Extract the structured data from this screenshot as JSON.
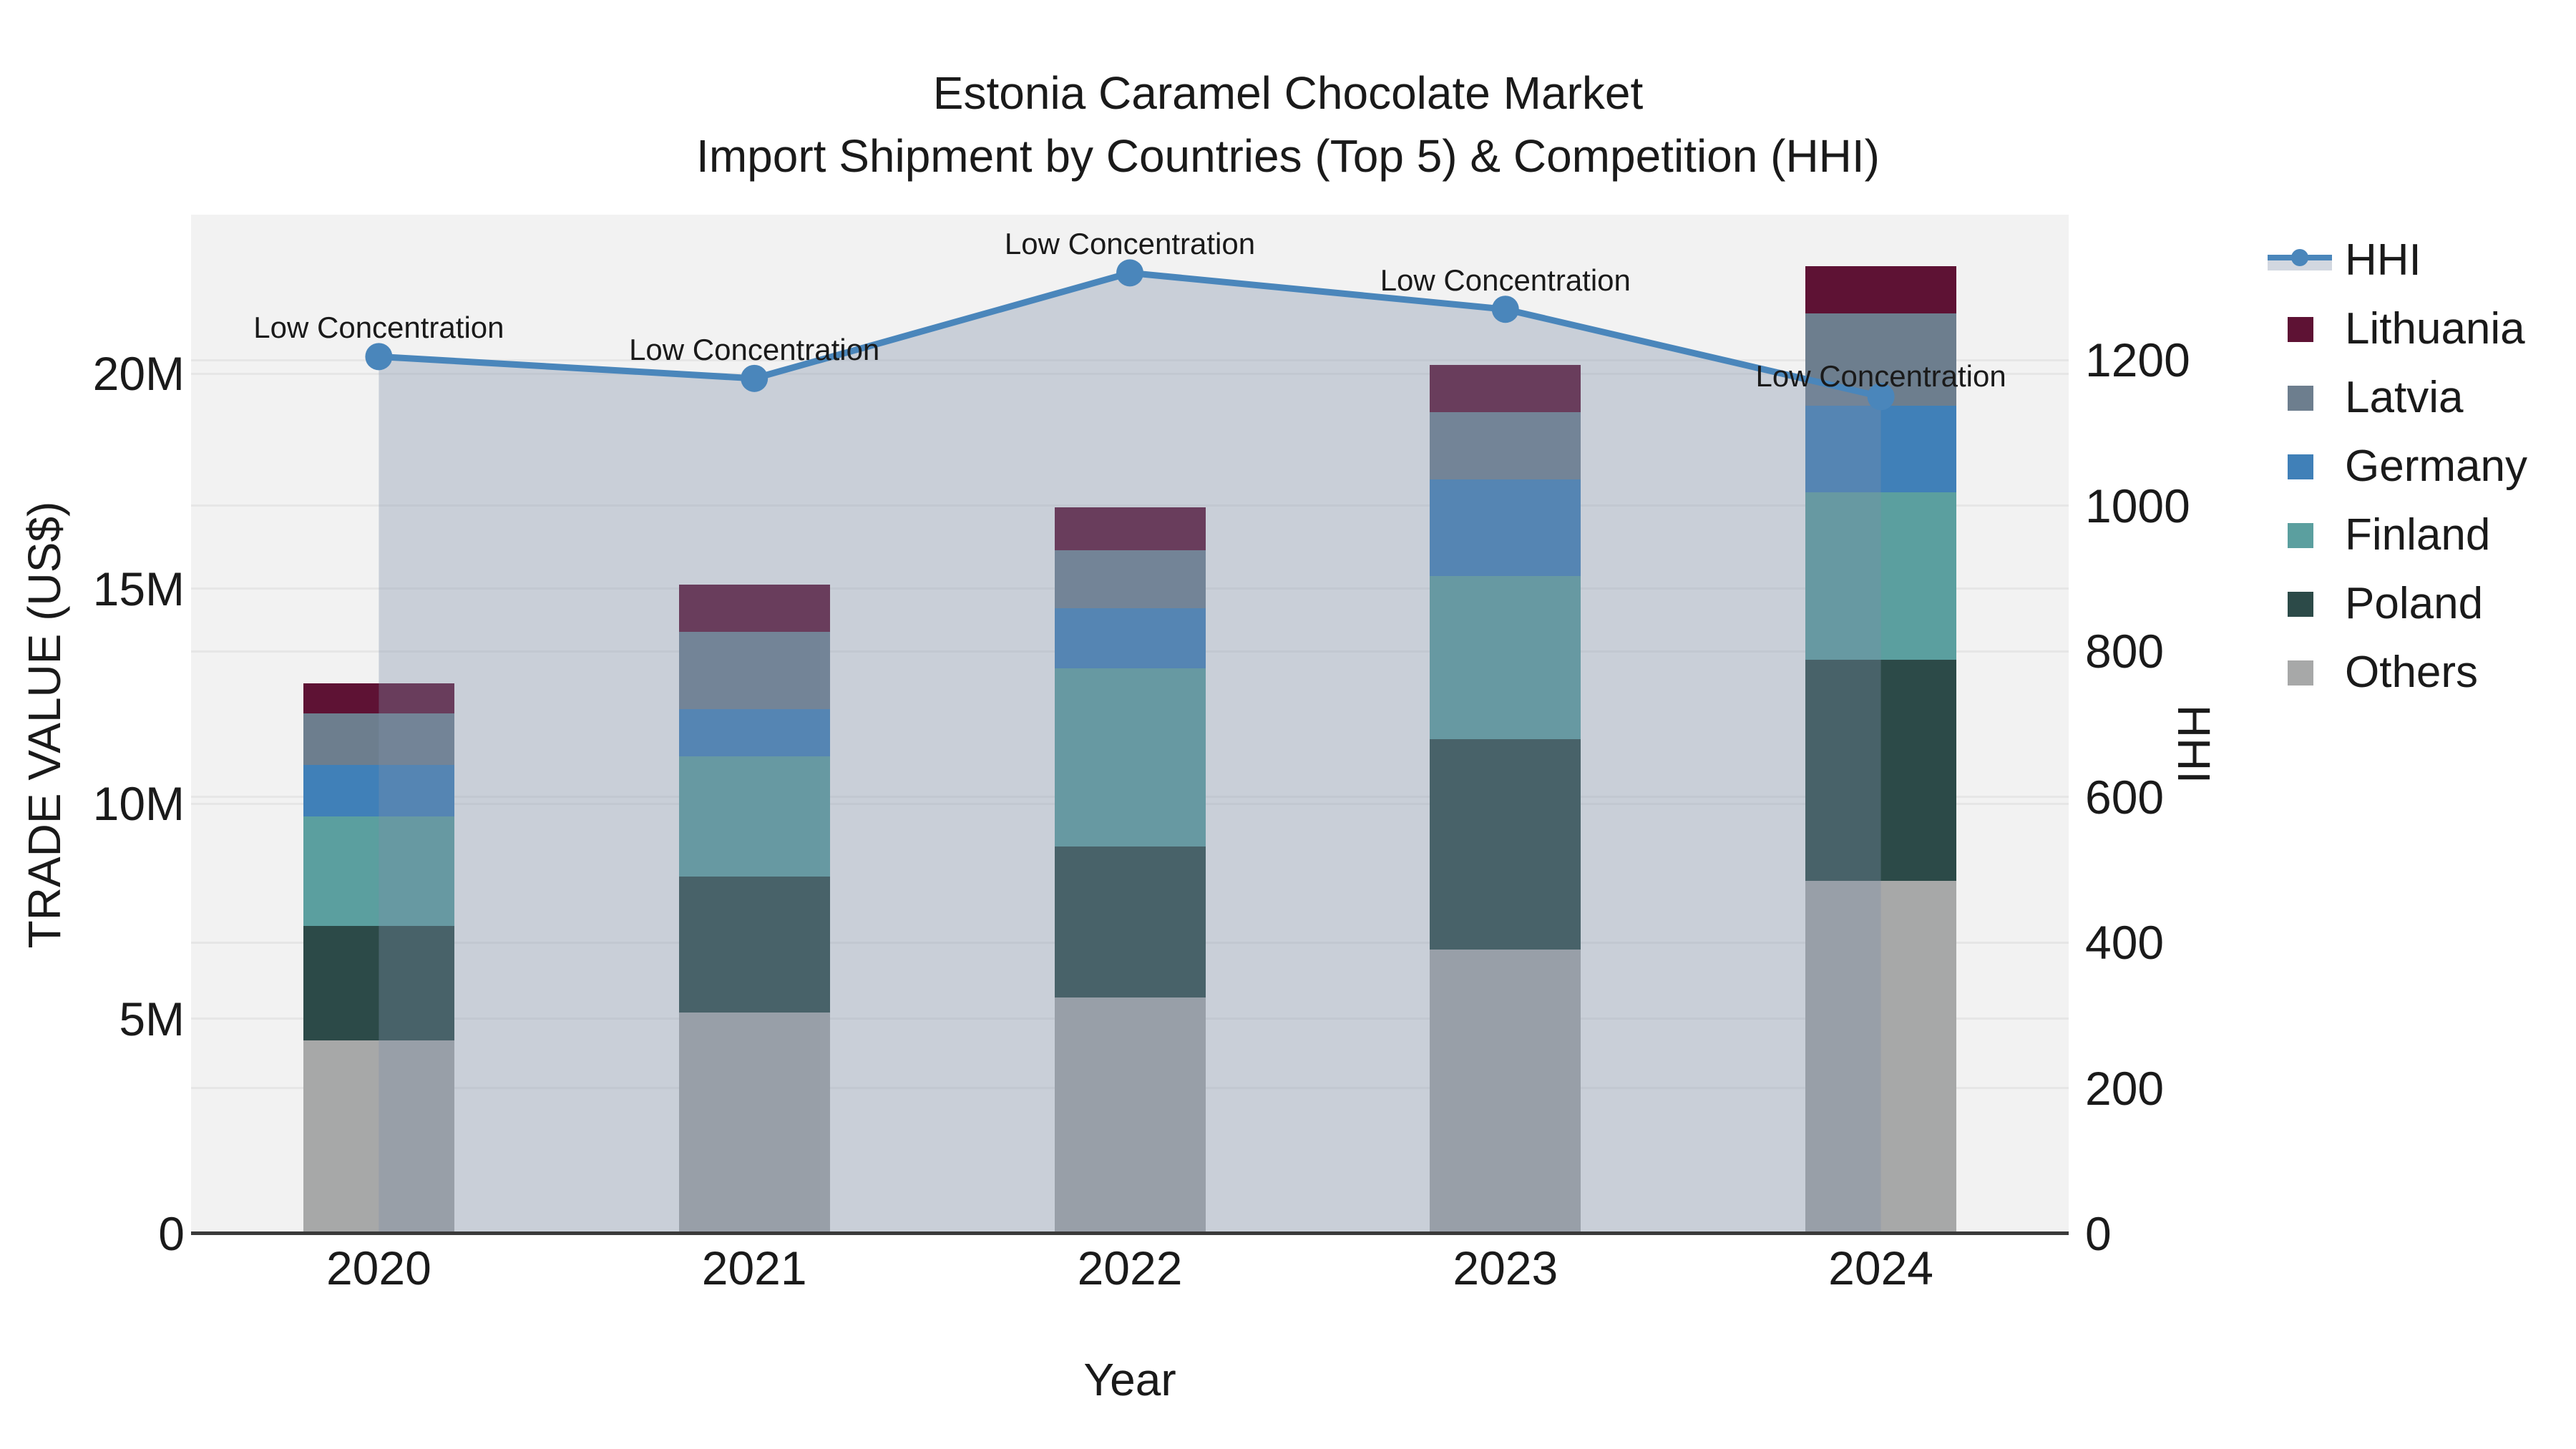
{
  "title": {
    "line1": "Estonia Caramel Chocolate Market",
    "line2": "Import Shipment by Countries (Top 5) & Competition (HHI)"
  },
  "chart_data": {
    "type": "stacked-bar+line",
    "title": "Estonia Caramel Chocolate Market — Import Shipment by Countries (Top 5) & Competition (HHI)",
    "categories": [
      "2020",
      "2021",
      "2022",
      "2023",
      "2024"
    ],
    "x": {
      "label": "Year"
    },
    "y_left": {
      "label": "TRADE VALUE (US$)",
      "ticks": [
        "0",
        "5M",
        "10M",
        "15M",
        "20M"
      ],
      "tick_values_musd": [
        0,
        5,
        10,
        15,
        20
      ],
      "range_musd": [
        0,
        23.7
      ],
      "grid": true
    },
    "y_right": {
      "label": "HHI",
      "ticks": [
        "0",
        "200",
        "400",
        "600",
        "800",
        "1000",
        "1200"
      ],
      "tick_values": [
        0,
        200,
        400,
        600,
        800,
        1000,
        1200
      ],
      "range": [
        0,
        1400
      ],
      "grid": true
    },
    "bar_series_bottom_to_top": [
      {
        "name": "Others",
        "color": "#a7a8a8",
        "values_musd": [
          4.5,
          5.15,
          5.5,
          6.6,
          8.2
        ]
      },
      {
        "name": "Poland",
        "color": "#2c4a48",
        "values_musd": [
          2.65,
          3.15,
          3.5,
          4.9,
          5.15
        ]
      },
      {
        "name": "Finland",
        "color": "#5b9f9f",
        "values_musd": [
          2.55,
          2.8,
          4.15,
          3.8,
          3.9
        ]
      },
      {
        "name": "Germany",
        "color": "#4080b8",
        "values_musd": [
          1.2,
          1.1,
          1.4,
          2.25,
          2.0
        ]
      },
      {
        "name": "Latvia",
        "color": "#6d7e8e",
        "values_musd": [
          1.2,
          1.8,
          1.35,
          1.55,
          2.15
        ]
      },
      {
        "name": "Lithuania",
        "color": "#5e1234",
        "values_musd": [
          0.7,
          1.1,
          1.0,
          1.1,
          1.1
        ]
      }
    ],
    "bar_totals_musd": [
      12.8,
      15.1,
      16.9,
      20.2,
      22.5
    ],
    "line_series": {
      "name": "HHI",
      "color": "#4a86bb",
      "area_fill": "rgba(127,142,168,0.35)",
      "values": [
        1205,
        1175,
        1320,
        1270,
        1150
      ]
    },
    "annotations": [
      "Low Concentration",
      "Low Concentration",
      "Low Concentration",
      "Low Concentration",
      "Low Concentration"
    ],
    "legend_position": "right",
    "plot_background": "#f2f2f2",
    "colors": {
      "hhi_line": "#4a86bb",
      "lithuania": "#5e1234",
      "latvia": "#6d7e8e",
      "germany": "#4080b8",
      "finland": "#5b9f9f",
      "poland": "#2c4a48",
      "others": "#a7a8a8"
    }
  },
  "legend": {
    "items": [
      {
        "label": "HHI",
        "type": "line",
        "color": "#4a86bb"
      },
      {
        "label": "Lithuania",
        "type": "patch",
        "color": "#5e1234"
      },
      {
        "label": "Latvia",
        "type": "patch",
        "color": "#6d7e8e"
      },
      {
        "label": "Germany",
        "type": "patch",
        "color": "#4080b8"
      },
      {
        "label": "Finland",
        "type": "patch",
        "color": "#5b9f9f"
      },
      {
        "label": "Poland",
        "type": "patch",
        "color": "#2c4a48"
      },
      {
        "label": "Others",
        "type": "patch",
        "color": "#a7a8a8"
      }
    ]
  }
}
